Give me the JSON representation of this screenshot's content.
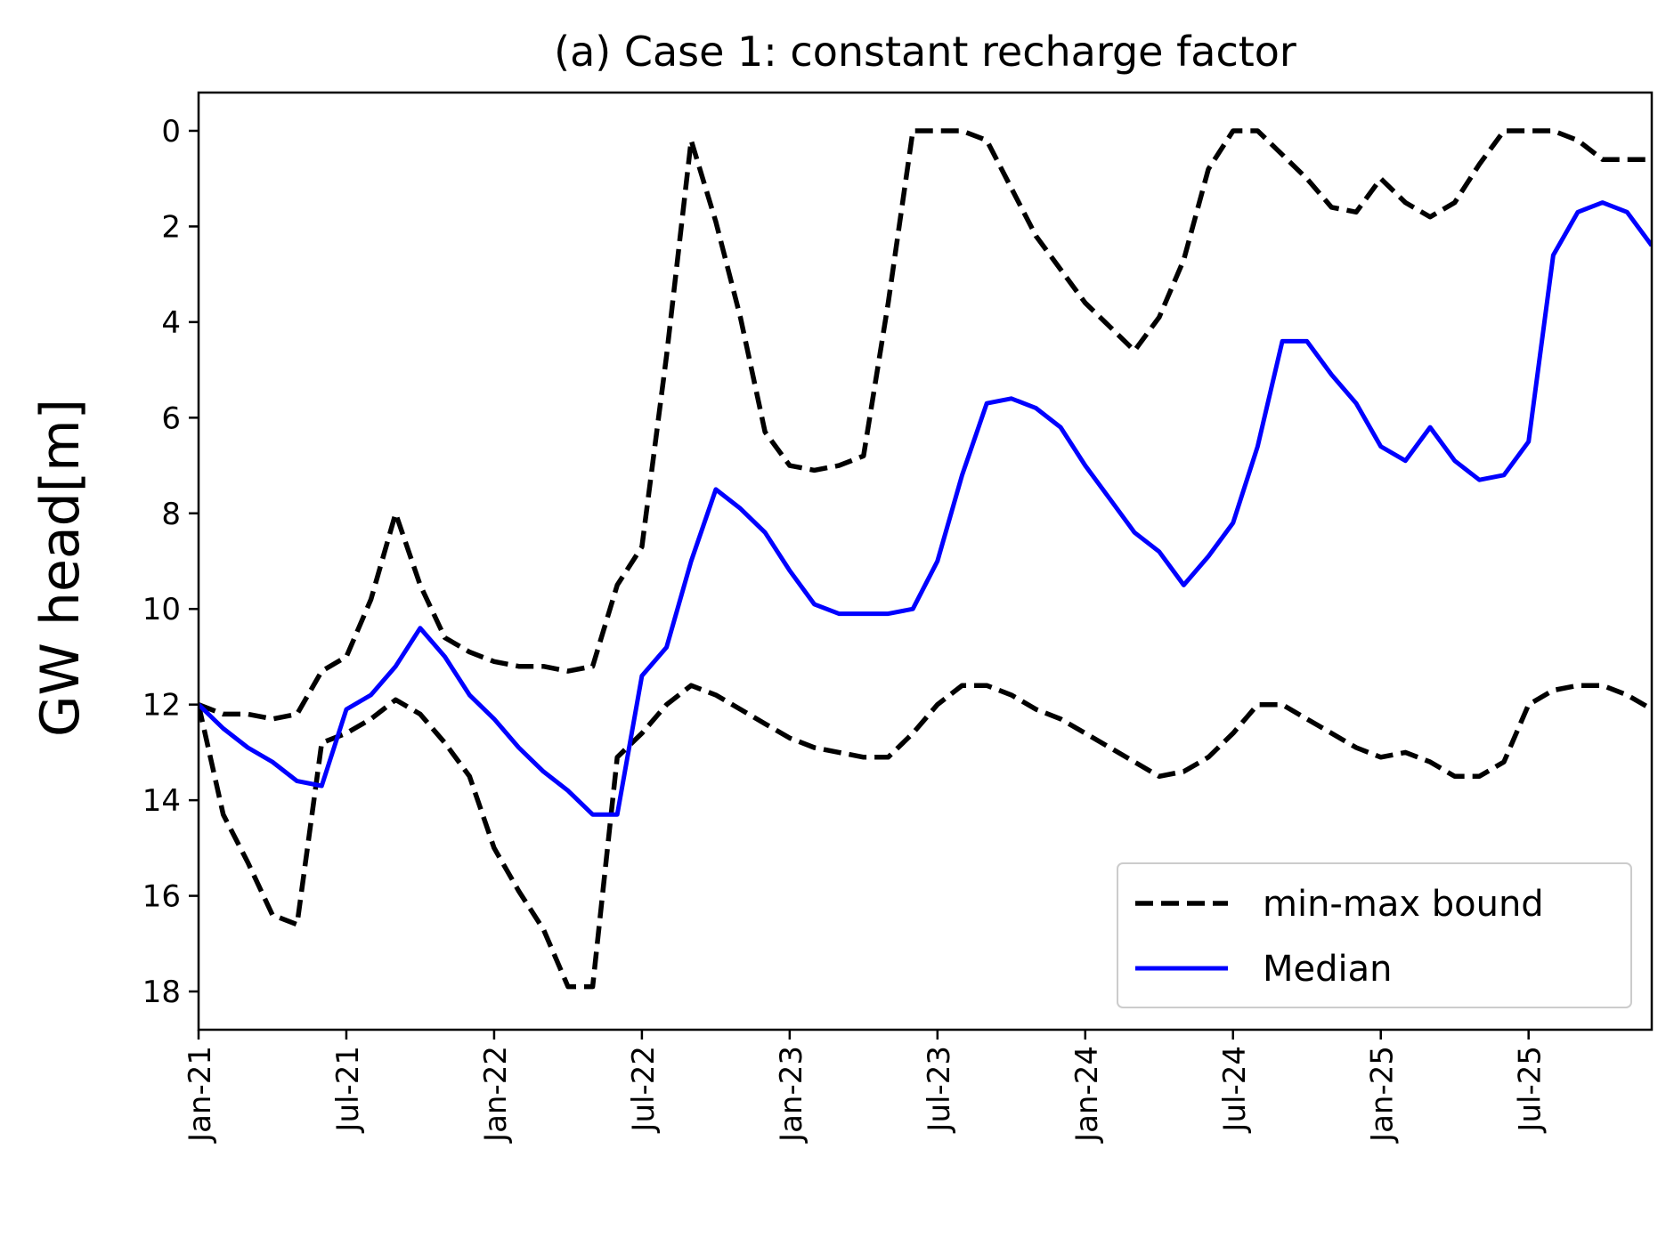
{
  "chart_data": {
    "type": "line",
    "title": "(a) Case 1: constant recharge factor",
    "xlabel": "",
    "ylabel": "GW head[m]",
    "y_inverted": true,
    "ylim": [
      18.8,
      -0.8
    ],
    "xlim": [
      "2021-01",
      "2025-12"
    ],
    "yticks": [
      0,
      2,
      4,
      6,
      8,
      10,
      12,
      14,
      16,
      18
    ],
    "xticks": [
      {
        "x": "2021-01",
        "label": "Jan-21"
      },
      {
        "x": "2021-07",
        "label": "Jul-21"
      },
      {
        "x": "2022-01",
        "label": "Jan-22"
      },
      {
        "x": "2022-07",
        "label": "Jul-22"
      },
      {
        "x": "2023-01",
        "label": "Jan-23"
      },
      {
        "x": "2023-07",
        "label": "Jul-23"
      },
      {
        "x": "2024-01",
        "label": "Jan-24"
      },
      {
        "x": "2024-07",
        "label": "Jul-24"
      },
      {
        "x": "2025-01",
        "label": "Jan-25"
      },
      {
        "x": "2025-07",
        "label": "Jul-25"
      }
    ],
    "legend_position": "bottom-right",
    "grid": false,
    "x": [
      "2021-01",
      "2021-02",
      "2021-03",
      "2021-04",
      "2021-05",
      "2021-06",
      "2021-07",
      "2021-08",
      "2021-09",
      "2021-10",
      "2021-11",
      "2021-12",
      "2022-01",
      "2022-02",
      "2022-03",
      "2022-04",
      "2022-05",
      "2022-06",
      "2022-07",
      "2022-08",
      "2022-09",
      "2022-10",
      "2022-11",
      "2022-12",
      "2023-01",
      "2023-02",
      "2023-03",
      "2023-04",
      "2023-05",
      "2023-06",
      "2023-07",
      "2023-08",
      "2023-09",
      "2023-10",
      "2023-11",
      "2023-12",
      "2024-01",
      "2024-02",
      "2024-03",
      "2024-04",
      "2024-05",
      "2024-06",
      "2024-07",
      "2024-08",
      "2024-09",
      "2024-10",
      "2024-11",
      "2024-12",
      "2025-01",
      "2025-02",
      "2025-03",
      "2025-04",
      "2025-05",
      "2025-06",
      "2025-07",
      "2025-08",
      "2025-09",
      "2025-10",
      "2025-11",
      "2025-12"
    ],
    "series": [
      {
        "name": "min-max bound",
        "role": "max",
        "color": "#000000",
        "style": "dashed",
        "values": [
          12.0,
          12.2,
          12.2,
          12.3,
          12.2,
          11.3,
          11.0,
          9.8,
          8.0,
          9.5,
          10.6,
          10.9,
          11.1,
          11.2,
          11.2,
          11.3,
          11.2,
          9.5,
          8.7,
          4.7,
          0.2,
          1.9,
          3.9,
          6.3,
          7.0,
          7.1,
          7.0,
          6.8,
          3.6,
          0.0,
          0.0,
          0.0,
          0.2,
          1.2,
          2.2,
          2.9,
          3.6,
          4.1,
          4.6,
          3.9,
          2.7,
          0.8,
          0.0,
          0.0,
          0.5,
          1.0,
          1.6,
          1.7,
          1.0,
          1.5,
          1.8,
          1.5,
          0.7,
          0.0,
          0.0,
          0.0,
          0.2,
          0.6,
          0.6,
          0.6
        ]
      },
      {
        "name": "",
        "role": "min",
        "color": "#000000",
        "style": "dashed",
        "values": [
          12.0,
          14.3,
          15.3,
          16.4,
          16.6,
          12.8,
          12.6,
          12.3,
          11.9,
          12.2,
          12.8,
          13.5,
          15.0,
          15.9,
          16.7,
          17.9,
          17.9,
          13.1,
          12.6,
          12.0,
          11.6,
          11.8,
          12.1,
          12.4,
          12.7,
          12.9,
          13.0,
          13.1,
          13.1,
          12.6,
          12.0,
          11.6,
          11.6,
          11.8,
          12.1,
          12.3,
          12.6,
          12.9,
          13.2,
          13.5,
          13.4,
          13.1,
          12.6,
          12.0,
          12.0,
          12.3,
          12.6,
          12.9,
          13.1,
          13.0,
          13.2,
          13.5,
          13.5,
          13.2,
          12.0,
          11.7,
          11.6,
          11.6,
          11.8,
          12.1
        ]
      },
      {
        "name": "Median",
        "role": "median",
        "color": "#0000ff",
        "style": "solid",
        "values": [
          12.0,
          12.5,
          12.9,
          13.2,
          13.6,
          13.7,
          12.1,
          11.8,
          11.2,
          10.4,
          11.0,
          11.8,
          12.3,
          12.9,
          13.4,
          13.8,
          14.3,
          14.3,
          11.4,
          10.8,
          9.0,
          7.5,
          7.9,
          8.4,
          9.2,
          9.9,
          10.1,
          10.1,
          10.1,
          10.0,
          9.0,
          7.2,
          5.7,
          5.6,
          5.8,
          6.2,
          7.0,
          7.7,
          8.4,
          8.8,
          9.5,
          8.9,
          8.2,
          6.6,
          4.4,
          4.4,
          5.1,
          5.7,
          6.6,
          6.9,
          6.2,
          6.9,
          7.3,
          7.2,
          6.5,
          2.6,
          1.7,
          1.5,
          1.7,
          2.4
        ]
      }
    ],
    "legend": [
      {
        "label": "min-max bound",
        "style": "dashed",
        "color": "#000000"
      },
      {
        "label": "Median",
        "style": "solid",
        "color": "#0000ff"
      }
    ]
  }
}
